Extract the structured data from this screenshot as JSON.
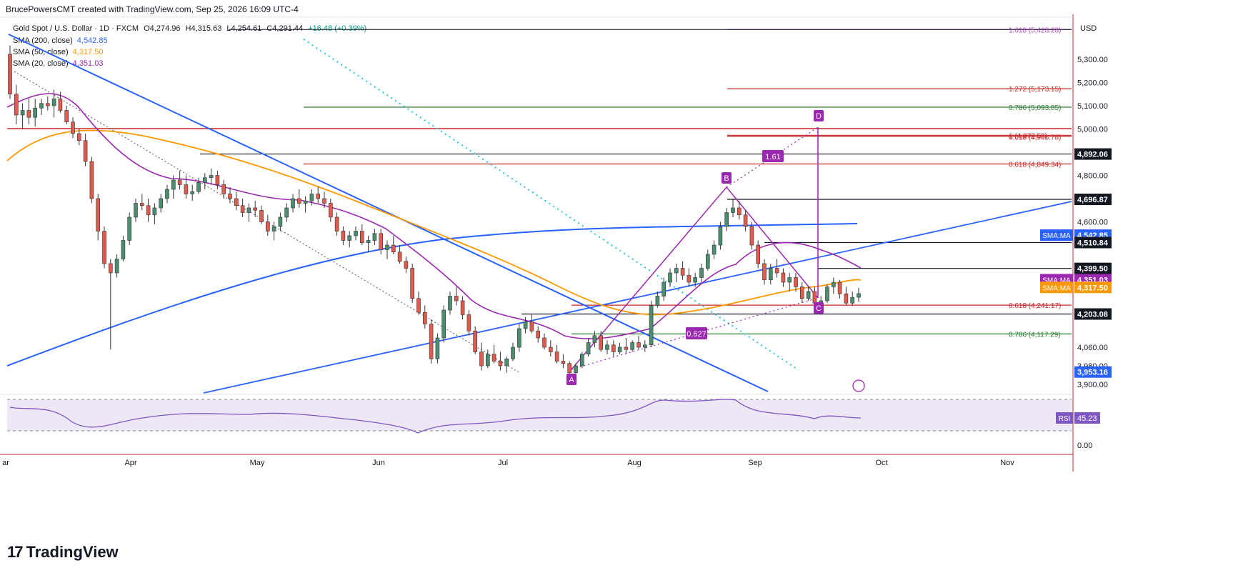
{
  "header": {
    "author_line": "BrucePowersCMT created with TradingView.com, Sep 25, 2026 16:09 UTC-4"
  },
  "symbol": {
    "title": "Gold Spot / U.S. Dollar · 1D · FXCM",
    "open": "O4,274.96",
    "high": "H4,315.63",
    "low": "L4,254.61",
    "close": "C4,291.44",
    "change": "+16.48 (+0.39%)"
  },
  "indicators": [
    {
      "label": "SMA (200, close)",
      "value": "4,542.85",
      "color": "#2962ff"
    },
    {
      "label": "SMA (50, close)",
      "value": "4,317.50",
      "color": "#ff9800"
    },
    {
      "label": "SMA (20, close)",
      "value": "4,351.03",
      "color": "#9c27b0"
    }
  ],
  "rsi": {
    "label": "RSI (14, close)",
    "value": "45.23",
    "badge": "RSI",
    "zero_label": "0.00"
  },
  "brand": "TradingView",
  "colors": {
    "up": "#26a69a",
    "down": "#ef5350",
    "up_fill": "#4a8d6f",
    "down_fill": "#e05a4e",
    "sma200": "#2962ff",
    "sma50": "#ff9800",
    "sma20": "#9c27b0",
    "rsi": "#7e57c2",
    "fib_red": "#c62828",
    "fib_green": "#2e7d32",
    "fib_purple": "#ab47bc"
  },
  "chart_data": {
    "type": "candlestick",
    "currency": "USD",
    "y_ticks": [
      "5,300.00",
      "5,200.00",
      "5,100.00",
      "5,000.00",
      "4,800.00",
      "4,600.00",
      "4,060.00",
      "3,980.00",
      "3,900.00"
    ],
    "x_ticks": [
      "ar",
      "Apr",
      "May",
      "Jun",
      "Jul",
      "Aug",
      "Sep",
      "Oct",
      "Nov"
    ],
    "price_labels": [
      {
        "text": "4,892.06",
        "kind": "black",
        "price": 4892.06
      },
      {
        "text": "4,696.87",
        "kind": "black",
        "price": 4696.87
      },
      {
        "text": "SMA:MA",
        "value": "4,542.85",
        "kind": "blue",
        "price": 4542.85
      },
      {
        "text": "4,510.84",
        "kind": "black",
        "price": 4510.84
      },
      {
        "text": "4,399.50",
        "kind": "black",
        "price": 4399.5
      },
      {
        "text": "SMA:MA",
        "value": "4,351.03",
        "kind": "purple",
        "price": 4351.03
      },
      {
        "text": "SMA:MA",
        "value": "4,317.50",
        "kind": "orange",
        "price": 4317.5
      },
      {
        "text": "4,203.08",
        "kind": "black",
        "price": 4203.08
      },
      {
        "text": "3,953.16",
        "kind": "blue",
        "price": 3953.16
      }
    ],
    "fib_levels": [
      {
        "text": "1.618 (5,428.28)",
        "price": 5428.28,
        "color": "purple"
      },
      {
        "text": "1.272 (5,173.15)",
        "price": 5173.15,
        "color": "red"
      },
      {
        "text": "0.786 (5,093.85)",
        "price": 5093.85,
        "color": "green"
      },
      {
        "text": "0.618 (4,966.78)",
        "price": 4966.78,
        "color": "red"
      },
      {
        "text": "1 (4,972.58)",
        "price": 4972.58,
        "color": "red"
      },
      {
        "text": "0.618 (4,849.34)",
        "price": 4849.34,
        "color": "red"
      },
      {
        "text": "0.618 (4,241.17)",
        "price": 4241.17,
        "color": "red"
      },
      {
        "text": "0.786 (4,117.29)",
        "price": 4117.29,
        "color": "green"
      }
    ],
    "pattern_points": [
      {
        "label": "A",
        "price": 3935
      },
      {
        "label": "B",
        "price": 4696.87
      },
      {
        "label": "C",
        "price": 4203.08
      },
      {
        "label": "D",
        "price": 4972.58
      }
    ],
    "ratio_labels": [
      "1.61",
      "0.627"
    ],
    "candles": [
      [
        5322,
        5360,
        5130,
        5150
      ],
      [
        5150,
        5190,
        5020,
        5060
      ],
      [
        5060,
        5110,
        5000,
        5080
      ],
      [
        5080,
        5130,
        5020,
        5050
      ],
      [
        5050,
        5130,
        5010,
        5090
      ],
      [
        5090,
        5130,
        5060,
        5110
      ],
      [
        5110,
        5140,
        5080,
        5100
      ],
      [
        5100,
        5170,
        5050,
        5130
      ],
      [
        5130,
        5160,
        5070,
        5080
      ],
      [
        5080,
        5100,
        5020,
        5030
      ],
      [
        5030,
        5050,
        4960,
        4980
      ],
      [
        4980,
        5000,
        4930,
        4950
      ],
      [
        4950,
        4980,
        4840,
        4860
      ],
      [
        4860,
        4880,
        4680,
        4700
      ],
      [
        4700,
        4720,
        4520,
        4560
      ],
      [
        4560,
        4580,
        4400,
        4420
      ],
      [
        4420,
        4440,
        4050,
        4380
      ],
      [
        4380,
        4460,
        4360,
        4440
      ],
      [
        4440,
        4540,
        4430,
        4520
      ],
      [
        4520,
        4640,
        4500,
        4620
      ],
      [
        4620,
        4700,
        4600,
        4680
      ],
      [
        4680,
        4720,
        4650,
        4670
      ],
      [
        4670,
        4700,
        4600,
        4630
      ],
      [
        4630,
        4680,
        4590,
        4660
      ],
      [
        4660,
        4720,
        4640,
        4700
      ],
      [
        4700,
        4760,
        4680,
        4740
      ],
      [
        4740,
        4800,
        4700,
        4780
      ],
      [
        4780,
        4820,
        4740,
        4760
      ],
      [
        4760,
        4800,
        4700,
        4720
      ],
      [
        4720,
        4760,
        4690,
        4730
      ],
      [
        4730,
        4790,
        4720,
        4770
      ],
      [
        4770,
        4810,
        4740,
        4790
      ],
      [
        4790,
        4830,
        4760,
        4800
      ],
      [
        4800,
        4820,
        4740,
        4760
      ],
      [
        4760,
        4780,
        4700,
        4720
      ],
      [
        4720,
        4750,
        4680,
        4700
      ],
      [
        4700,
        4730,
        4650,
        4670
      ],
      [
        4670,
        4700,
        4620,
        4640
      ],
      [
        4640,
        4680,
        4600,
        4660
      ],
      [
        4660,
        4690,
        4620,
        4650
      ],
      [
        4650,
        4670,
        4590,
        4600
      ],
      [
        4600,
        4630,
        4540,
        4560
      ],
      [
        4560,
        4600,
        4520,
        4580
      ],
      [
        4580,
        4640,
        4560,
        4620
      ],
      [
        4620,
        4680,
        4600,
        4660
      ],
      [
        4660,
        4720,
        4640,
        4700
      ],
      [
        4700,
        4740,
        4660,
        4680
      ],
      [
        4680,
        4710,
        4640,
        4690
      ],
      [
        4690,
        4740,
        4670,
        4720
      ],
      [
        4720,
        4750,
        4680,
        4700
      ],
      [
        4700,
        4730,
        4660,
        4680
      ],
      [
        4680,
        4700,
        4600,
        4620
      ],
      [
        4620,
        4640,
        4540,
        4560
      ],
      [
        4560,
        4580,
        4500,
        4520
      ],
      [
        4520,
        4560,
        4490,
        4540
      ],
      [
        4540,
        4580,
        4520,
        4560
      ],
      [
        4560,
        4590,
        4500,
        4510
      ],
      [
        4510,
        4540,
        4470,
        4520
      ],
      [
        4520,
        4570,
        4500,
        4550
      ],
      [
        4550,
        4570,
        4460,
        4480
      ],
      [
        4480,
        4520,
        4440,
        4500
      ],
      [
        4500,
        4540,
        4460,
        4470
      ],
      [
        4470,
        4500,
        4420,
        4430
      ],
      [
        4430,
        4450,
        4380,
        4400
      ],
      [
        4400,
        4420,
        4250,
        4270
      ],
      [
        4270,
        4300,
        4200,
        4210
      ],
      [
        4210,
        4240,
        4140,
        4160
      ],
      [
        4160,
        4180,
        3990,
        4010
      ],
      [
        4010,
        4120,
        3990,
        4100
      ],
      [
        4100,
        4240,
        4080,
        4220
      ],
      [
        4220,
        4300,
        4200,
        4280
      ],
      [
        4280,
        4320,
        4240,
        4260
      ],
      [
        4260,
        4280,
        4180,
        4200
      ],
      [
        4200,
        4220,
        4110,
        4130
      ],
      [
        4130,
        4150,
        4030,
        4040
      ],
      [
        4040,
        4080,
        3960,
        3980
      ],
      [
        3980,
        4050,
        3970,
        4030
      ],
      [
        4030,
        4070,
        3990,
        4000
      ],
      [
        4000,
        4040,
        3960,
        3980
      ],
      [
        3980,
        4020,
        3950,
        4010
      ],
      [
        4010,
        4080,
        4000,
        4060
      ],
      [
        4060,
        4160,
        4040,
        4140
      ],
      [
        4140,
        4190,
        4120,
        4170
      ],
      [
        4170,
        4200,
        4120,
        4130
      ],
      [
        4130,
        4150,
        4080,
        4100
      ],
      [
        4100,
        4120,
        4050,
        4060
      ],
      [
        4060,
        4090,
        4020,
        4040
      ],
      [
        4040,
        4070,
        3990,
        4000
      ],
      [
        4000,
        4030,
        3970,
        3990
      ],
      [
        3990,
        4000,
        3940,
        3950
      ],
      [
        3950,
        3990,
        3940,
        3980
      ],
      [
        3980,
        4040,
        3970,
        4030
      ],
      [
        4030,
        4100,
        4020,
        4080
      ],
      [
        4080,
        4130,
        4060,
        4110
      ],
      [
        4110,
        4130,
        4040,
        4050
      ],
      [
        4050,
        4090,
        4030,
        4070
      ],
      [
        4070,
        4090,
        4020,
        4040
      ],
      [
        4040,
        4080,
        4030,
        4060
      ],
      [
        4060,
        4100,
        4030,
        4050
      ],
      [
        4050,
        4090,
        4040,
        4080
      ],
      [
        4080,
        4110,
        4050,
        4060
      ],
      [
        4060,
        4090,
        4040,
        4070
      ],
      [
        4070,
        4260,
        4060,
        4240
      ],
      [
        4240,
        4300,
        4230,
        4280
      ],
      [
        4280,
        4360,
        4260,
        4340
      ],
      [
        4340,
        4400,
        4320,
        4380
      ],
      [
        4380,
        4420,
        4340,
        4400
      ],
      [
        4400,
        4430,
        4350,
        4370
      ],
      [
        4370,
        4400,
        4320,
        4340
      ],
      [
        4340,
        4380,
        4320,
        4360
      ],
      [
        4360,
        4420,
        4340,
        4400
      ],
      [
        4400,
        4480,
        4390,
        4460
      ],
      [
        4460,
        4520,
        4440,
        4500
      ],
      [
        4500,
        4600,
        4480,
        4580
      ],
      [
        4580,
        4660,
        4560,
        4640
      ],
      [
        4640,
        4700,
        4620,
        4660
      ],
      [
        4660,
        4690,
        4610,
        4630
      ],
      [
        4630,
        4650,
        4560,
        4580
      ],
      [
        4580,
        4600,
        4480,
        4500
      ],
      [
        4500,
        4520,
        4400,
        4420
      ],
      [
        4420,
        4440,
        4330,
        4350
      ],
      [
        4350,
        4420,
        4330,
        4400
      ],
      [
        4400,
        4440,
        4360,
        4380
      ],
      [
        4380,
        4400,
        4320,
        4340
      ],
      [
        4340,
        4380,
        4300,
        4360
      ],
      [
        4360,
        4380,
        4300,
        4320
      ],
      [
        4320,
        4340,
        4250,
        4270
      ],
      [
        4270,
        4320,
        4260,
        4300
      ],
      [
        4300,
        4320,
        4230,
        4250
      ],
      [
        4250,
        4280,
        4200,
        4260
      ],
      [
        4260,
        4330,
        4250,
        4320
      ],
      [
        4320,
        4360,
        4290,
        4340
      ],
      [
        4340,
        4350,
        4270,
        4290
      ],
      [
        4290,
        4320,
        4240,
        4250
      ],
      [
        4250,
        4300,
        4240,
        4275
      ],
      [
        4275,
        4316,
        4255,
        4291
      ]
    ]
  }
}
